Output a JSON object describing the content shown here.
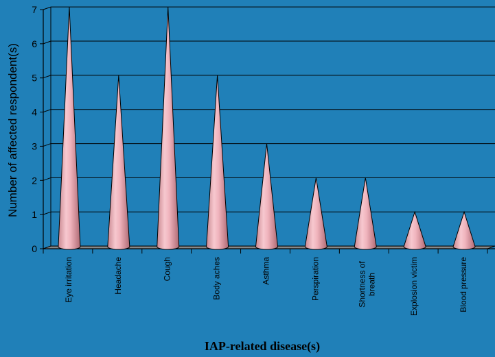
{
  "chart_data": {
    "type": "bar",
    "bar_shape": "cone",
    "categories": [
      "Eye irritation",
      "Headache",
      "Cough",
      "Body aches",
      "Asthma",
      "Perspiration",
      "Shortness of breath",
      "Explosion victim",
      "Blood pressure"
    ],
    "category_lines": [
      [
        "Eye irritation"
      ],
      [
        "Headache"
      ],
      [
        "Cough"
      ],
      [
        "Body aches"
      ],
      [
        "Asthma"
      ],
      [
        "Perspiration"
      ],
      [
        "Shortness of",
        "breath"
      ],
      [
        "Explosion victim"
      ],
      [
        "Blood pressure"
      ]
    ],
    "values": [
      7,
      5,
      7,
      5,
      3,
      2,
      2,
      1,
      1
    ],
    "title": "",
    "xlabel": "IAP-related disease(s)",
    "ylabel": "Number of affected respondent(s)",
    "ylim": [
      0,
      7
    ],
    "yticks": [
      "0",
      "1",
      "2",
      "3",
      "4",
      "5",
      "6",
      "7"
    ],
    "grid": true,
    "legend": "none",
    "colors": {
      "background": "#2080b8",
      "bar": "#f0b8c0",
      "bar_shadow": "#c07880",
      "gridline": "#000000"
    }
  }
}
